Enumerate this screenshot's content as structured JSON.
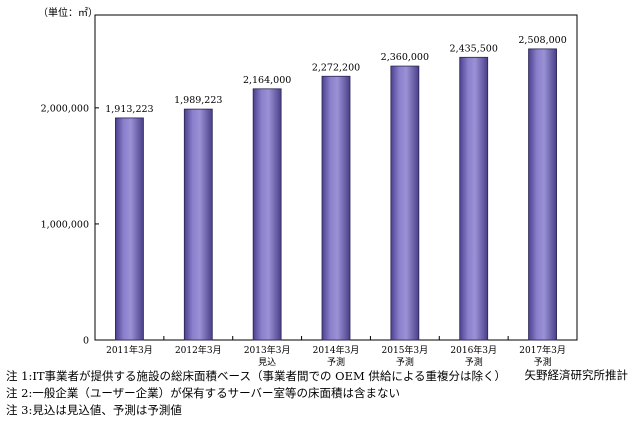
{
  "unit_label": "（単位：㎡）",
  "source": "矢野経済研究所推計",
  "notes": [
    "注 1:IT事業者が提供する施設の総床面積ベース（事業者間での OEM 供給による重複分は除く）",
    "注 2:一般企業（ユーザー企業）が保有するサーバー室等の床面積は含まない",
    "注 3:見込は見込値、予測は予測値"
  ],
  "chart_data": {
    "type": "bar",
    "title": "",
    "xlabel": "",
    "ylabel": "（単位：㎡）",
    "categories": [
      "2011年3月",
      "2012年3月",
      "2013年3月",
      "2014年3月",
      "2015年3月",
      "2016年3月",
      "2017年3月"
    ],
    "category_sublabels": [
      "",
      "",
      "見込",
      "予測",
      "予測",
      "予測",
      "予測"
    ],
    "values": [
      1913223,
      1989223,
      2164000,
      2272200,
      2360000,
      2435500,
      2508000
    ],
    "value_labels": [
      "1,913,223",
      "1,989,223",
      "2,164,000",
      "2,272,200",
      "2,360,000",
      "2,435,500",
      "2,508,000"
    ],
    "ylim": [
      0,
      2800000
    ],
    "yticks": [
      0,
      1000000,
      2000000
    ],
    "ytick_labels": [
      "0",
      "1,000,000",
      "2,000,000"
    ],
    "grid": false,
    "legend": "none",
    "bar_color": "#7b6fbd",
    "bar_edge_color": "#2a2452"
  }
}
